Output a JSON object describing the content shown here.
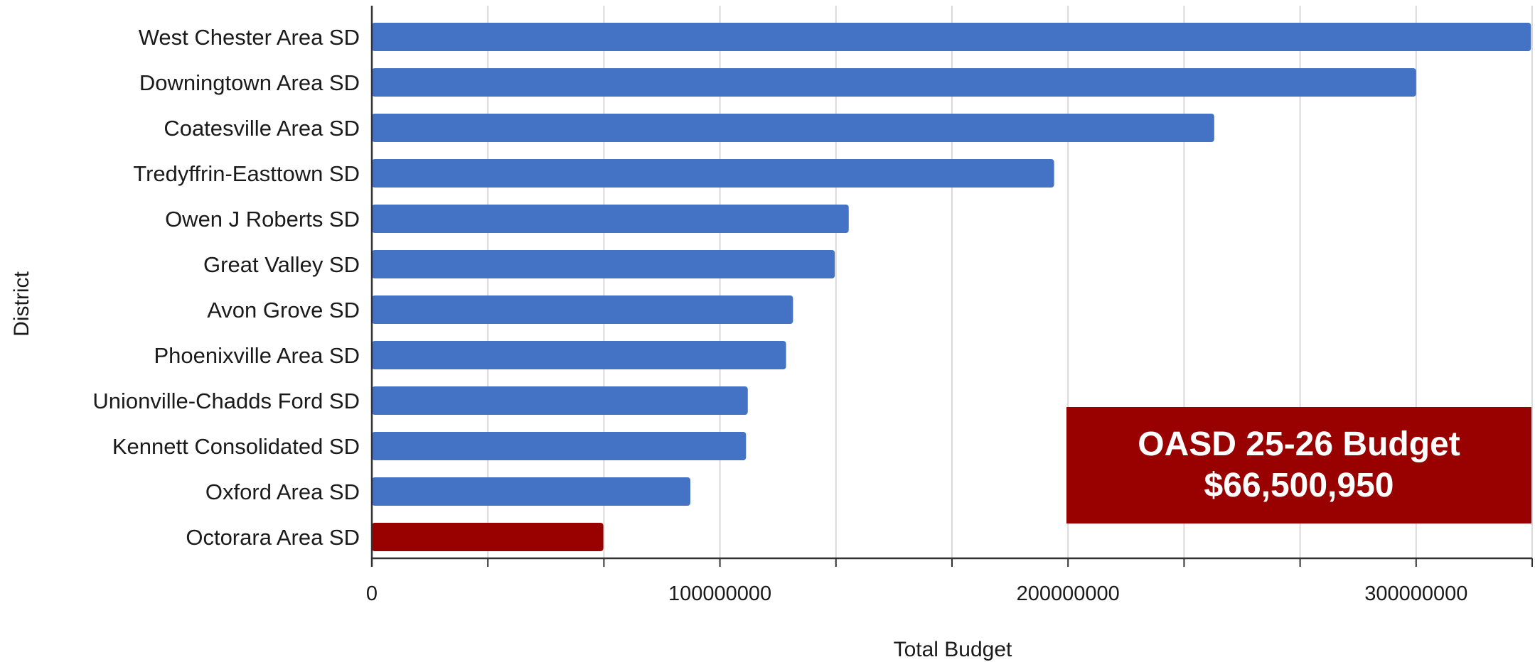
{
  "chart_data": {
    "type": "bar",
    "orientation": "horizontal",
    "xlabel": "Total Budget",
    "ylabel": "District",
    "xlim": [
      0,
      333333333
    ],
    "x_ticks": [
      0,
      100000000,
      200000000,
      300000000
    ],
    "x_tick_labels": [
      "0",
      "100000000",
      "200000000",
      "300000000"
    ],
    "grid": true,
    "categories": [
      "West Chester Area SD",
      "Downingtown Area SD",
      "Coatesville Area SD",
      "Tredyffrin-Easttown SD",
      "Owen J Roberts SD",
      "Great Valley SD",
      "Avon Grove SD",
      "Phoenixville Area SD",
      "Unionville-Chadds Ford SD",
      "Kennett Consolidated SD",
      "Oxford Area SD",
      "Octorara Area SD"
    ],
    "values": [
      333000000,
      300000000,
      242000000,
      196000000,
      137000000,
      133000000,
      121000000,
      119000000,
      108000000,
      107500000,
      91500000,
      66500950
    ],
    "colors": {
      "default": "#4472c4",
      "highlight": "#990000",
      "highlight_category": "Octorara Area SD"
    },
    "annotation": {
      "line1": "OASD 25-26 Budget",
      "line2": "$66,500,950",
      "background": "#990000"
    }
  }
}
